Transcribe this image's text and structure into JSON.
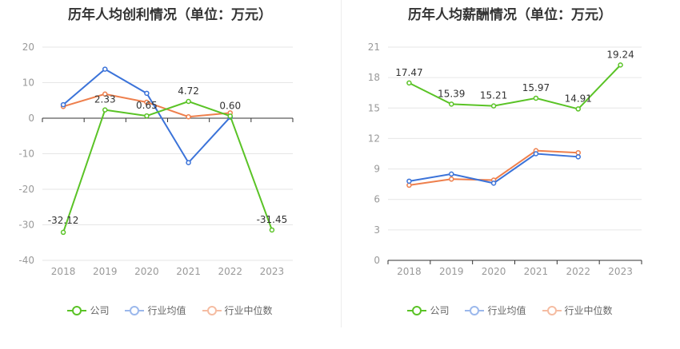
{
  "colors": {
    "company": "#5ac326",
    "industry_avg": "#3b73d9",
    "industry_median": "#ee7f4c",
    "grid": "#e6e6e6",
    "axis": "#333333"
  },
  "legend": [
    "公司",
    "行业均值",
    "行业中位数"
  ],
  "chart_data": [
    {
      "type": "line",
      "title": "历年人均创利情况（单位：万元）",
      "categories": [
        "2018",
        "2019",
        "2020",
        "2021",
        "2022",
        "2023"
      ],
      "ylim": [
        -40,
        20
      ],
      "yticks": [
        -40,
        -30,
        -20,
        -10,
        0,
        10,
        20
      ],
      "series": [
        {
          "name": "公司",
          "key": "company",
          "values": [
            -32.12,
            2.33,
            0.65,
            4.72,
            0.6,
            -31.45
          ],
          "labels": [
            "-32.12",
            "2.33",
            "0.65",
            "4.72",
            "0.60",
            "-31.45"
          ]
        },
        {
          "name": "行业均值",
          "key": "industry_avg",
          "values": [
            3.8,
            13.8,
            7.0,
            -12.5,
            0.3,
            null
          ]
        },
        {
          "name": "行业中位数",
          "key": "industry_median",
          "values": [
            3.3,
            6.8,
            4.5,
            0.4,
            1.5,
            null
          ]
        }
      ]
    },
    {
      "type": "line",
      "title": "历年人均薪酬情况（单位：万元）",
      "categories": [
        "2018",
        "2019",
        "2020",
        "2021",
        "2022",
        "2023"
      ],
      "ylim": [
        0,
        21
      ],
      "yticks": [
        0,
        3,
        6,
        9,
        12,
        15,
        18,
        21
      ],
      "series": [
        {
          "name": "公司",
          "key": "company",
          "values": [
            17.47,
            15.39,
            15.21,
            15.97,
            14.91,
            19.24
          ],
          "labels": [
            "17.47",
            "15.39",
            "15.21",
            "15.97",
            "14.91",
            "19.24"
          ]
        },
        {
          "name": "行业均值",
          "key": "industry_avg",
          "values": [
            7.8,
            8.5,
            7.6,
            10.5,
            10.2,
            null
          ]
        },
        {
          "name": "行业中位数",
          "key": "industry_median",
          "values": [
            7.4,
            8.0,
            7.9,
            10.8,
            10.6,
            null
          ]
        }
      ]
    }
  ]
}
